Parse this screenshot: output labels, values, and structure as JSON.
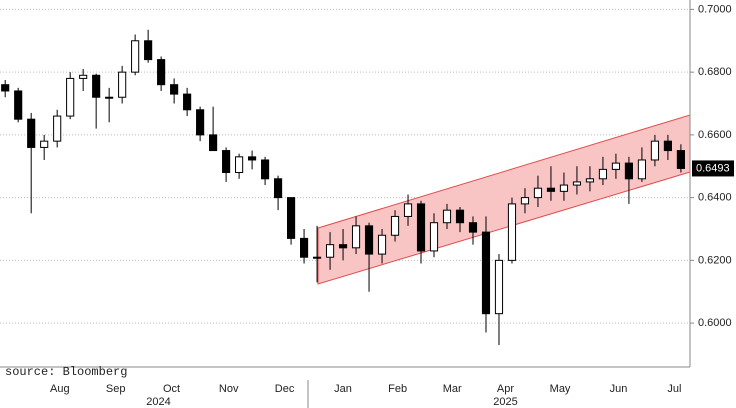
{
  "chart_data": {
    "type": "candlestick",
    "source": "source: Bloomberg",
    "up_color": "#ffffff",
    "down_color": "#000000",
    "x": [
      0,
      1,
      2,
      3,
      4,
      5,
      6,
      7,
      8,
      9,
      10,
      11,
      12,
      13,
      14,
      15,
      16,
      17,
      18,
      19,
      20,
      21,
      22,
      23,
      24,
      25,
      26,
      27,
      28,
      29,
      30,
      31,
      32,
      33,
      34,
      35,
      36,
      37,
      38,
      39,
      40,
      41,
      42,
      43,
      44,
      45,
      46,
      47,
      48,
      49,
      50,
      51,
      52
    ],
    "open": [
      0.676,
      0.674,
      0.665,
      0.656,
      0.658,
      0.666,
      0.678,
      0.679,
      0.672,
      0.672,
      0.68,
      0.69,
      0.684,
      0.676,
      0.673,
      0.668,
      0.66,
      0.655,
      0.648,
      0.653,
      0.652,
      0.646,
      0.64,
      0.627,
      0.621,
      0.621,
      0.625,
      0.624,
      0.631,
      0.622,
      0.628,
      0.634,
      0.638,
      0.623,
      0.632,
      0.636,
      0.632,
      0.629,
      0.603,
      0.62,
      0.638,
      0.64,
      0.643,
      0.642,
      0.644,
      0.645,
      0.646,
      0.649,
      0.651,
      0.646,
      0.652,
      0.658,
      0.655
    ],
    "high": [
      0.6775,
      0.675,
      0.667,
      0.66,
      0.668,
      0.68,
      0.681,
      0.6795,
      0.675,
      0.682,
      0.692,
      0.6935,
      0.685,
      0.678,
      0.675,
      0.669,
      0.669,
      0.656,
      0.654,
      0.655,
      0.653,
      0.647,
      0.64,
      0.63,
      0.631,
      0.629,
      0.63,
      0.634,
      0.632,
      0.63,
      0.636,
      0.641,
      0.639,
      0.635,
      0.638,
      0.637,
      0.634,
      0.634,
      0.622,
      0.64,
      0.643,
      0.647,
      0.65,
      0.648,
      0.65,
      0.65,
      0.653,
      0.654,
      0.653,
      0.656,
      0.66,
      0.66,
      0.657
    ],
    "low": [
      0.672,
      0.664,
      0.635,
      0.652,
      0.656,
      0.665,
      0.674,
      0.662,
      0.664,
      0.67,
      0.679,
      0.683,
      0.674,
      0.67,
      0.666,
      0.658,
      0.655,
      0.645,
      0.646,
      0.649,
      0.644,
      0.636,
      0.625,
      0.619,
      0.613,
      0.617,
      0.62,
      0.622,
      0.61,
      0.619,
      0.626,
      0.631,
      0.619,
      0.621,
      0.63,
      0.629,
      0.625,
      0.597,
      0.593,
      0.619,
      0.635,
      0.637,
      0.639,
      0.639,
      0.641,
      0.642,
      0.644,
      0.646,
      0.638,
      0.645,
      0.65,
      0.652,
      0.648
    ],
    "close": [
      0.674,
      0.665,
      0.656,
      0.658,
      0.666,
      0.678,
      0.679,
      0.672,
      0.672,
      0.68,
      0.69,
      0.684,
      0.676,
      0.673,
      0.668,
      0.66,
      0.655,
      0.648,
      0.653,
      0.652,
      0.646,
      0.64,
      0.627,
      0.621,
      0.621,
      0.625,
      0.624,
      0.631,
      0.622,
      0.628,
      0.634,
      0.638,
      0.623,
      0.632,
      0.636,
      0.632,
      0.629,
      0.603,
      0.62,
      0.638,
      0.64,
      0.643,
      0.642,
      0.644,
      0.645,
      0.646,
      0.649,
      0.651,
      0.646,
      0.652,
      0.658,
      0.655,
      0.6493
    ],
    "last_price": 0.6493,
    "xlim": [
      -0.4,
      52.7
    ],
    "xticks": [
      {
        "value": 4.2,
        "label": "Aug"
      },
      {
        "value": 8.5,
        "label": "Sep"
      },
      {
        "value": 12.8,
        "label": "Oct"
      },
      {
        "value": 17.2,
        "label": "Nov"
      },
      {
        "value": 21.5,
        "label": "Dec"
      },
      {
        "value": 26,
        "label": "Jan"
      },
      {
        "value": 30.2,
        "label": "Feb"
      },
      {
        "value": 34.4,
        "label": "Mar"
      },
      {
        "value": 38.5,
        "label": "Apr"
      },
      {
        "value": 42.7,
        "label": "May"
      },
      {
        "value": 47.2,
        "label": "Jun"
      },
      {
        "value": 51.5,
        "label": "Jul"
      }
    ],
    "year_ticks": [
      {
        "value": 11.8,
        "label": "2024"
      },
      {
        "value": 38.5,
        "label": "2025"
      }
    ],
    "ylim": [
      0.586,
      0.703
    ],
    "yticks": [
      {
        "value": 0.6,
        "label": "0.6000"
      },
      {
        "value": 0.62,
        "label": "0.6200"
      },
      {
        "value": 0.64,
        "label": "0.6400"
      },
      {
        "value": 0.66,
        "label": "0.6600"
      },
      {
        "value": 0.68,
        "label": "0.6800"
      },
      {
        "value": 0.7,
        "label": "0.7000"
      }
    ],
    "grid": true
  }
}
